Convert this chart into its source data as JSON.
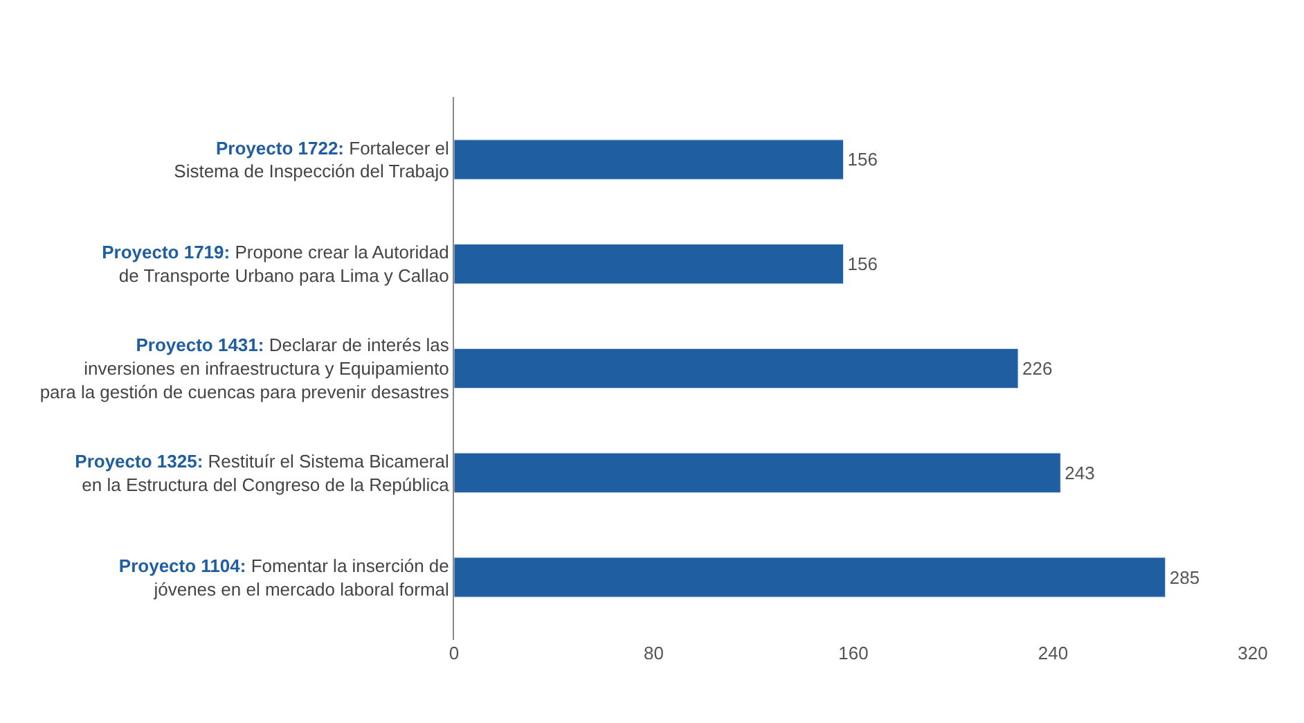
{
  "chart_data": {
    "type": "bar",
    "orientation": "horizontal",
    "categories": [
      "Proyecto 1722: Fortalecer el\nSistema de Inspección del Trabajo",
      "Proyecto 1719: Propone crear la Autoridad\nde Transporte Urbano para Lima y Callao",
      "Proyecto 1431: Declarar de interés las\ninversiones en infraestructura y Equipamiento\npara la gestión de cuencas para prevenir desastres",
      "Proyecto 1325: Restituír el Sistema Bicameral\nen la Estructura del Congreso de la República",
      "Proyecto 1104: Fomentar la inserción de\njóvenes en el mercado laboral formal"
    ],
    "values": [
      156,
      156,
      226,
      243,
      285
    ],
    "color": "#1f5ea0",
    "xlim": [
      0,
      320
    ],
    "xticks": [
      0,
      80,
      160,
      240,
      320
    ],
    "data_labels": true
  }
}
